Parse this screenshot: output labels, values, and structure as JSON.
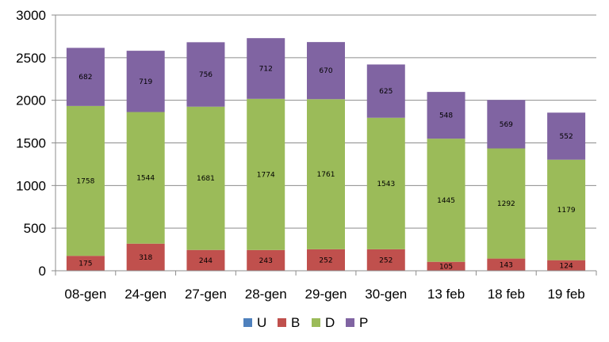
{
  "chart_data": {
    "type": "bar",
    "stacked": true,
    "categories": [
      "08-gen",
      "24-gen",
      "27-gen",
      "28-gen",
      "29-gen",
      "30-gen",
      "13 feb",
      "18 feb",
      "19 feb"
    ],
    "series": [
      {
        "name": "U",
        "color": "#4f81bd",
        "values": [
          0,
          0,
          0,
          0,
          0,
          0,
          0,
          0,
          0
        ]
      },
      {
        "name": "B",
        "color": "#c0504d",
        "values": [
          175,
          318,
          244,
          243,
          252,
          252,
          105,
          143,
          124
        ]
      },
      {
        "name": "D",
        "color": "#9bbb59",
        "values": [
          1758,
          1544,
          1681,
          1774,
          1761,
          1543,
          1445,
          1292,
          1179
        ]
      },
      {
        "name": "P",
        "color": "#8064a2",
        "values": [
          682,
          719,
          756,
          712,
          670,
          625,
          548,
          569,
          552
        ]
      }
    ],
    "ylim": [
      0,
      3000
    ],
    "yticks": [
      0,
      500,
      1000,
      1500,
      2000,
      2500,
      3000
    ],
    "grid": true,
    "legend": "bottom",
    "title": "",
    "xlabel": "",
    "ylabel": ""
  }
}
